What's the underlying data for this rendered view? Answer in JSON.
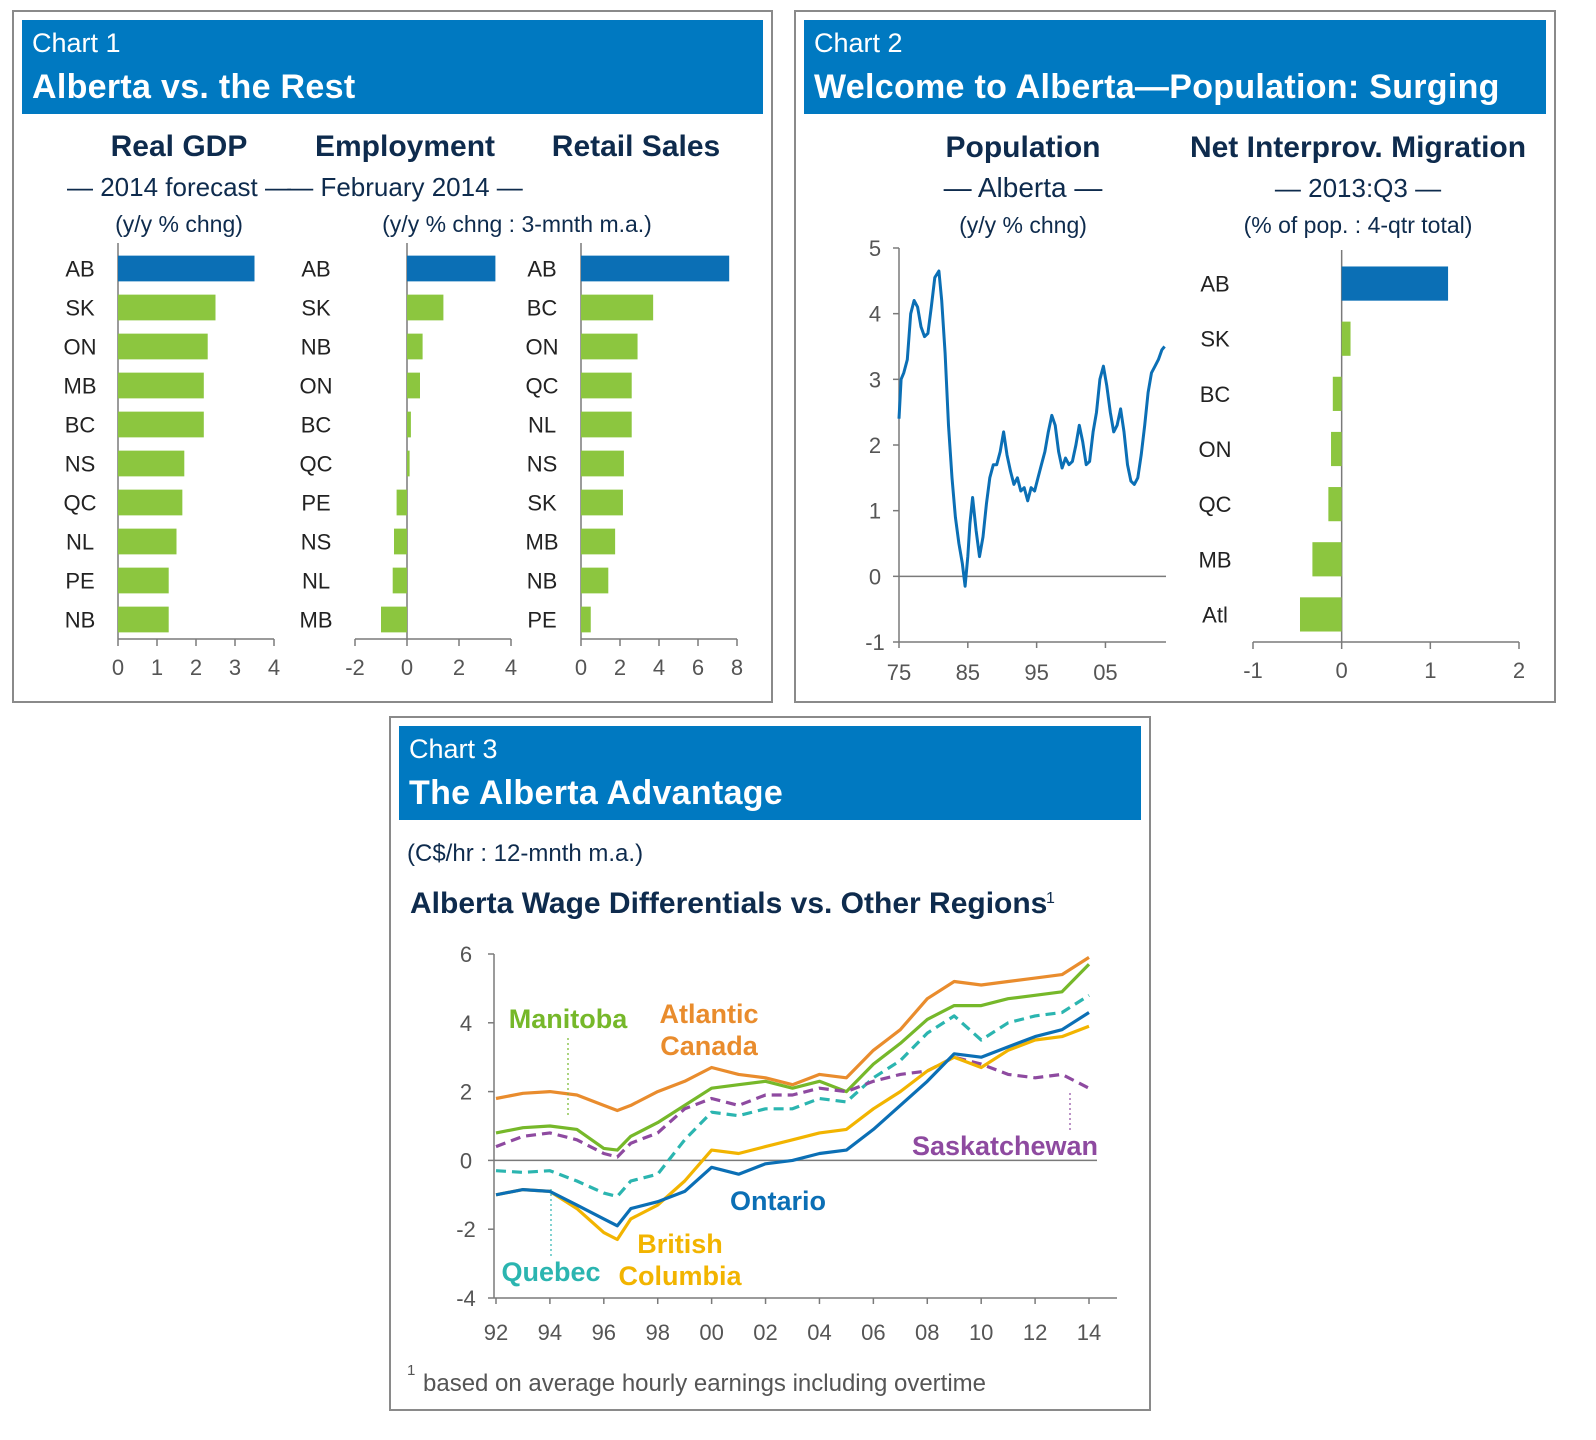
{
  "chart1": {
    "tag": "Chart 1",
    "title": "Alberta vs. the Rest",
    "panels": [
      {
        "title": "Real GDP",
        "subtitle": "— 2014 forecast —",
        "unit": "(y/y % chng)",
        "categories": [
          "AB",
          "SK",
          "ON",
          "MB",
          "BC",
          "NS",
          "QC",
          "NL",
          "PE",
          "NB"
        ],
        "values": [
          3.5,
          2.5,
          2.3,
          2.2,
          2.2,
          1.7,
          1.65,
          1.5,
          1.3,
          1.3
        ],
        "xlim": [
          0,
          4
        ],
        "ticks": [
          "0",
          "1",
          "2",
          "3",
          "4"
        ]
      },
      {
        "title": "Employment",
        "subtitle": "— February 2014 —",
        "unit": "(y/y % chng : 3-mnth m.a.)",
        "categories": [
          "AB",
          "SK",
          "NB",
          "ON",
          "BC",
          "QC",
          "PE",
          "NS",
          "NL",
          "MB"
        ],
        "values": [
          3.4,
          1.4,
          0.6,
          0.5,
          0.15,
          0.1,
          -0.4,
          -0.5,
          -0.55,
          -1.0
        ],
        "xlim": [
          -2,
          4
        ],
        "ticks": [
          "-2",
          "0",
          "2",
          "4"
        ]
      },
      {
        "title": "Retail Sales",
        "subtitle": "",
        "unit": "",
        "categories": [
          "AB",
          "BC",
          "ON",
          "QC",
          "NL",
          "NS",
          "SK",
          "MB",
          "NB",
          "PE"
        ],
        "values": [
          7.6,
          3.7,
          2.9,
          2.6,
          2.6,
          2.2,
          2.15,
          1.75,
          1.4,
          0.5
        ],
        "xlim": [
          0,
          8
        ],
        "ticks": [
          "0",
          "2",
          "4",
          "6",
          "8"
        ]
      }
    ]
  },
  "chart2": {
    "tag": "Chart 2",
    "title": "Welcome to Alberta—Population: Surging",
    "population": {
      "title": "Population",
      "subtitle": "— Alberta —",
      "unit": "(y/y % chng)",
      "xlim": [
        1975,
        2013.8
      ],
      "ylim": [
        -1,
        5
      ],
      "xticks": [
        "75",
        "85",
        "95",
        "05"
      ],
      "yticks": [
        "5",
        "4",
        "3",
        "2",
        "1",
        "0",
        "-1"
      ],
      "x": [
        1975,
        1975.3,
        1975.7,
        1976.2,
        1976.7,
        1977.2,
        1977.7,
        1978.2,
        1978.7,
        1979.2,
        1979.7,
        1980.2,
        1980.8,
        1981.2,
        1981.7,
        1982.2,
        1982.7,
        1983.2,
        1983.7,
        1984.2,
        1984.6,
        1985,
        1985.3,
        1985.7,
        1986.2,
        1986.7,
        1987.2,
        1987.7,
        1988.2,
        1988.7,
        1989.2,
        1989.7,
        1990.2,
        1990.7,
        1991.2,
        1991.7,
        1992.2,
        1992.7,
        1993.2,
        1993.7,
        1994.2,
        1994.7,
        1995.2,
        1995.7,
        1996.2,
        1996.7,
        1997.2,
        1997.7,
        1998.2,
        1998.7,
        1999.2,
        1999.7,
        2000.2,
        2000.7,
        2001.2,
        2001.7,
        2002.2,
        2002.7,
        2003.2,
        2003.7,
        2004.2,
        2004.7,
        2005.2,
        2005.7,
        2006.2,
        2006.7,
        2007.2,
        2007.7,
        2008.2,
        2008.7,
        2009.2,
        2009.7,
        2010.2,
        2010.7,
        2011.2,
        2011.7,
        2012.2,
        2012.7,
        2013.2,
        2013.6
      ],
      "y": [
        2.4,
        3.0,
        3.1,
        3.3,
        4.0,
        4.2,
        4.1,
        3.8,
        3.65,
        3.7,
        4.1,
        4.55,
        4.65,
        4.2,
        3.4,
        2.3,
        1.5,
        0.9,
        0.5,
        0.2,
        -0.15,
        0.3,
        0.8,
        1.2,
        0.7,
        0.3,
        0.6,
        1.1,
        1.5,
        1.7,
        1.7,
        1.9,
        2.2,
        1.85,
        1.6,
        1.4,
        1.5,
        1.3,
        1.35,
        1.15,
        1.35,
        1.3,
        1.5,
        1.7,
        1.9,
        2.2,
        2.45,
        2.3,
        1.9,
        1.65,
        1.8,
        1.7,
        1.75,
        2.0,
        2.3,
        2.05,
        1.7,
        1.75,
        2.2,
        2.5,
        3.0,
        3.2,
        2.9,
        2.5,
        2.2,
        2.3,
        2.55,
        2.2,
        1.7,
        1.45,
        1.4,
        1.5,
        1.85,
        2.3,
        2.8,
        3.1,
        3.2,
        3.3,
        3.45,
        3.5
      ]
    },
    "migration": {
      "title": "Net Interprov. Migration",
      "subtitle": "— 2013:Q3 —",
      "unit": "(% of pop. : 4-qtr total)",
      "categories": [
        "AB",
        "SK",
        "BC",
        "ON",
        "QC",
        "MB",
        "Atl"
      ],
      "values": [
        1.2,
        0.1,
        -0.1,
        -0.12,
        -0.15,
        -0.33,
        -0.47
      ],
      "xlim": [
        -1,
        2
      ],
      "ticks": [
        "-1",
        "0",
        "1",
        "2"
      ]
    }
  },
  "chart3": {
    "tag": "Chart 3",
    "title": "The Alberta Advantage",
    "unit": "(C$/hr : 12-mnth m.a.)",
    "subtitle": "Alberta Wage Differentials vs. Other Regions",
    "subtitle_mark": "1",
    "footnote_mark": "1",
    "footnote": "based on average hourly earnings including overtime",
    "chart_data": {
      "type": "line",
      "xlim": [
        1992,
        2014.4
      ],
      "ylim": [
        -4,
        6
      ],
      "xticks": [
        "92",
        "94",
        "96",
        "98",
        "00",
        "02",
        "04",
        "06",
        "08",
        "10",
        "12",
        "14"
      ],
      "yticks": [
        "6",
        "4",
        "2",
        "0",
        "-2",
        "-4"
      ],
      "x": [
        1992,
        1993,
        1994,
        1995,
        1996,
        1996.5,
        1997,
        1998,
        1999,
        2000,
        2001,
        2002,
        2003,
        2004,
        2005,
        2006,
        2007,
        2008,
        2009,
        2010,
        2011,
        2012,
        2013,
        2014
      ],
      "series": [
        {
          "name": "Atlantic Canada",
          "label_lines": [
            "Atlantic",
            "Canada"
          ],
          "color": "#e98c2d",
          "dashed": false,
          "values": [
            1.8,
            1.95,
            2.0,
            1.9,
            1.6,
            1.45,
            1.6,
            2.0,
            2.3,
            2.7,
            2.5,
            2.4,
            2.2,
            2.5,
            2.4,
            3.2,
            3.8,
            4.7,
            5.2,
            5.1,
            5.2,
            5.3,
            5.4,
            5.9
          ]
        },
        {
          "name": "Manitoba",
          "label_lines": [
            "Manitoba"
          ],
          "color": "#76b82a",
          "dashed": false,
          "values": [
            0.8,
            0.95,
            1.0,
            0.9,
            0.35,
            0.3,
            0.7,
            1.1,
            1.6,
            2.1,
            2.2,
            2.3,
            2.1,
            2.3,
            2.0,
            2.8,
            3.4,
            4.1,
            4.5,
            4.5,
            4.7,
            4.8,
            4.9,
            5.7
          ]
        },
        {
          "name": "Quebec",
          "label_lines": [
            "Quebec"
          ],
          "color": "#2bb5b0",
          "dashed": true,
          "values": [
            -0.3,
            -0.35,
            -0.3,
            -0.6,
            -0.95,
            -1.05,
            -0.6,
            -0.4,
            0.6,
            1.4,
            1.3,
            1.5,
            1.5,
            1.8,
            1.7,
            2.4,
            2.9,
            3.7,
            4.2,
            3.5,
            4.0,
            4.2,
            4.3,
            4.8
          ]
        },
        {
          "name": "Saskatchewan",
          "label_lines": [
            "Saskatchewan"
          ],
          "color": "#8e4aa0",
          "dashed": true,
          "values": [
            0.4,
            0.7,
            0.8,
            0.6,
            0.2,
            0.1,
            0.5,
            0.8,
            1.5,
            1.8,
            1.6,
            1.9,
            1.9,
            2.1,
            2.0,
            2.3,
            2.5,
            2.6,
            3.0,
            2.8,
            2.5,
            2.4,
            2.5,
            2.1
          ]
        },
        {
          "name": "British Columbia",
          "label_lines": [
            "British",
            "Columbia"
          ],
          "color": "#f2b400",
          "dashed": false,
          "values": [
            -1.0,
            -0.85,
            -0.9,
            -1.4,
            -2.1,
            -2.3,
            -1.7,
            -1.3,
            -0.6,
            0.3,
            0.2,
            0.4,
            0.6,
            0.8,
            0.9,
            1.5,
            2.0,
            2.6,
            3.0,
            2.7,
            3.2,
            3.5,
            3.6,
            3.9
          ]
        },
        {
          "name": "Ontario",
          "label_lines": [
            "Ontario"
          ],
          "color": "#0b6fb5",
          "dashed": false,
          "values": [
            -1.0,
            -0.85,
            -0.9,
            -1.3,
            -1.7,
            -1.9,
            -1.4,
            -1.2,
            -0.9,
            -0.2,
            -0.4,
            -0.1,
            0.0,
            0.2,
            0.3,
            0.9,
            1.6,
            2.3,
            3.1,
            3.0,
            3.3,
            3.6,
            3.8,
            4.3
          ]
        }
      ]
    }
  }
}
